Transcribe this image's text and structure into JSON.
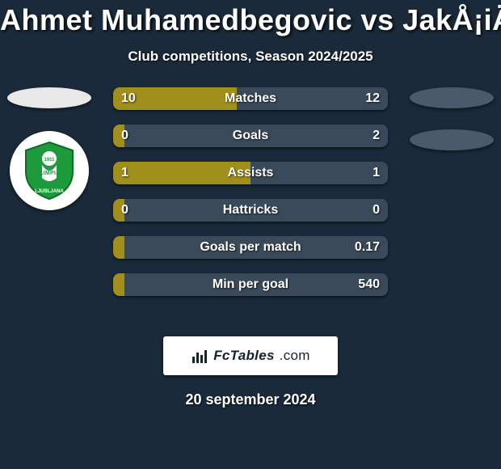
{
  "colors": {
    "bg": "#1a2a3a",
    "title": "#ffffff",
    "subtitle": "#ffffff",
    "bar_track": "#3a4a5a",
    "bar_fill": "#a18f1c",
    "bar_text": "#ffffff",
    "bar_label": "#ffffff",
    "oval_left": "#e8e8e8",
    "oval_right": "#4a5a6a",
    "brand_bg": "#ffffff",
    "brand_text": "#16222c",
    "date": "#ffffff"
  },
  "typography": {
    "title_size": 36,
    "subtitle_size": 17,
    "bar_value_size": 16,
    "bar_label_size": 16,
    "brand_size": 17,
    "date_size": 18
  },
  "title": "Ahmet Muhamedbegovic vs JakÅ¡iÄ‡",
  "subtitle": "Club competitions, Season 2024/2025",
  "left_player": {
    "oval_color": "#e8e8e8",
    "club_badge": {
      "primary": "#1d9b3c",
      "secondary": "#ffffff",
      "text_top": "OLIMPIJA",
      "text_bottom": "LJUBLJANA",
      "year": "1911"
    }
  },
  "right_player": {
    "oval_color": "#4a5a6a"
  },
  "bars": [
    {
      "label": "Matches",
      "left": "10",
      "right": "12",
      "fill_pct": 45
    },
    {
      "label": "Goals",
      "left": "0",
      "right": "2",
      "fill_pct": 4
    },
    {
      "label": "Assists",
      "left": "1",
      "right": "1",
      "fill_pct": 50
    },
    {
      "label": "Hattricks",
      "left": "0",
      "right": "0",
      "fill_pct": 4
    },
    {
      "label": "Goals per match",
      "left": "",
      "right": "0.17",
      "fill_pct": 4
    },
    {
      "label": "Min per goal",
      "left": "",
      "right": "540",
      "fill_pct": 4
    }
  ],
  "brand": {
    "name": "FcTables",
    "domain": ".com"
  },
  "date": "20 september 2024"
}
